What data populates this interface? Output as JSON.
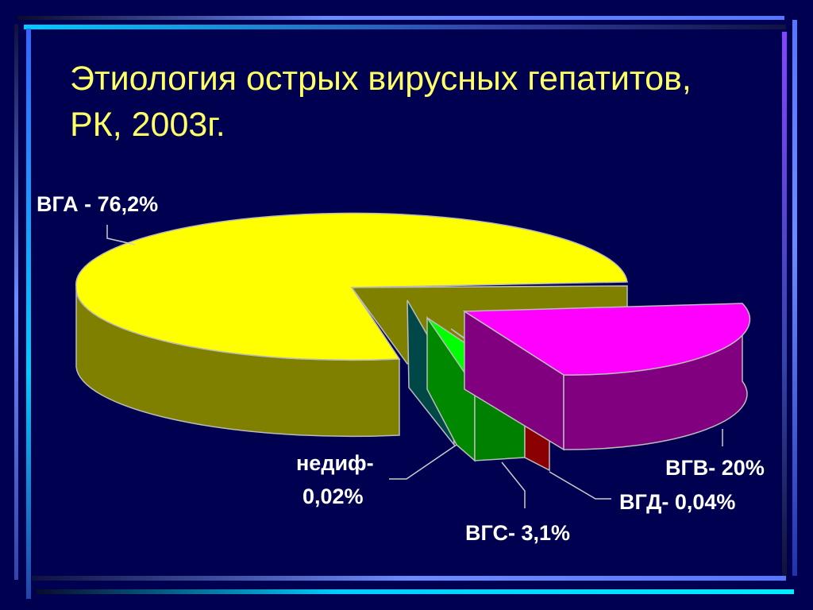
{
  "slide": {
    "title_line1": "Этиология острых вирусных гепатитов,",
    "title_line2": "РК, 2003г."
  },
  "chart_data": {
    "type": "pie",
    "title": "Этиология острых вирусных гепатитов, РК, 2003г.",
    "slices": [
      {
        "name": "ВГА",
        "value": 76.2,
        "label": "ВГА - 76,2%",
        "color": "#ffff00"
      },
      {
        "name": "ВГВ",
        "value": 20,
        "label": "ВГВ- 20%",
        "color": "#ff00ff"
      },
      {
        "name": "ВГД",
        "value": 0.04,
        "label": "ВГД- 0,04%",
        "color": "#c00000"
      },
      {
        "name": "ВГС",
        "value": 3.1,
        "label": "ВГС- 3,1%",
        "color": "#00ff00"
      },
      {
        "name": "недиф",
        "value": 0.02,
        "label_line1": "недиф-",
        "label_line2": "0,02%",
        "color": "#006060"
      }
    ],
    "style": "3d-exploded"
  }
}
